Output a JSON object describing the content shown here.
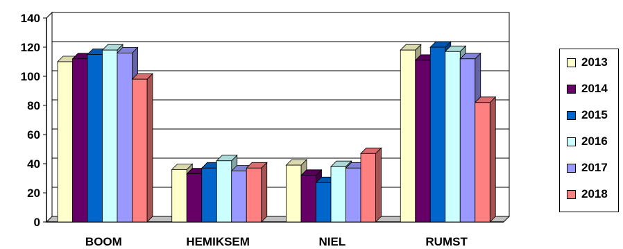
{
  "chart_data": {
    "type": "bar",
    "categories": [
      "BOOM",
      "HEMIKSEM",
      "NIEL",
      "RUMST"
    ],
    "series": [
      {
        "name": "2013",
        "color": "#FFFFCC",
        "values": [
          110,
          36,
          39,
          118
        ]
      },
      {
        "name": "2014",
        "color": "#660066",
        "values": [
          112,
          33,
          32,
          111
        ]
      },
      {
        "name": "2015",
        "color": "#0066CC",
        "values": [
          115,
          37,
          27,
          120
        ]
      },
      {
        "name": "2016",
        "color": "#CCFFFF",
        "values": [
          118,
          42,
          38,
          117
        ]
      },
      {
        "name": "2017",
        "color": "#9999FF",
        "values": [
          116,
          35,
          37,
          112
        ]
      },
      {
        "name": "2018",
        "color": "#FF8080",
        "values": [
          98,
          37,
          47,
          82
        ]
      }
    ],
    "ylim": [
      0,
      140
    ],
    "yticks": [
      "0",
      "20",
      "40",
      "60",
      "80",
      "100",
      "120",
      "140"
    ],
    "gridlines": true,
    "legend_position": "right",
    "style": "3d-clustered-bar"
  }
}
